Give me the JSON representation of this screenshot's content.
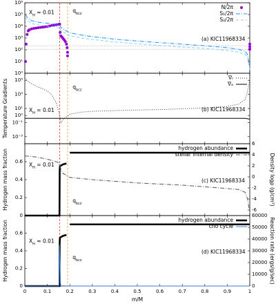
{
  "vlines": [
    {
      "x": 0.155,
      "color": "#e8382e"
    },
    {
      "x": 0.19,
      "color": "#f5a623"
    }
  ],
  "xh_label": {
    "base": "X",
    "sub": "H",
    "tail": " = 0.01"
  },
  "bcz_label": {
    "base": "q",
    "sub": "bcz"
  },
  "chart_data": [
    {
      "type": "line",
      "annotation": "(a) KIC11968334",
      "log": true,
      "legend": "upper right",
      "xlim": [
        0,
        1
      ],
      "xticks": [
        0,
        0.1,
        0.2,
        0.3,
        0.4,
        0.5,
        0.6,
        0.7,
        0.8,
        0.9,
        1
      ],
      "ylim": [
        1,
        1000000
      ],
      "yticks": [
        {
          "value": 1,
          "label": "10⁰"
        },
        {
          "value": 10,
          "label": "10¹"
        },
        {
          "value": 100,
          "label": "10²"
        },
        {
          "value": 1000,
          "label": "10³"
        },
        {
          "value": 10000,
          "label": "10⁴"
        },
        {
          "value": 100000,
          "label": "10⁵"
        },
        {
          "value": 1000000,
          "label": "10⁶"
        }
      ],
      "hlines": [
        220,
        110
      ],
      "series": [
        {
          "name": "N/2π",
          "color": "#9400d3",
          "style": "points",
          "x": [
            0.003,
            0.006,
            0.01,
            0.015,
            0.02,
            0.03,
            0.04,
            0.05,
            0.06,
            0.07,
            0.08,
            0.09,
            0.1,
            0.11,
            0.12,
            0.13,
            0.14,
            0.15,
            0.155,
            0.157,
            0.16,
            0.165,
            0.17,
            0.175,
            0.18,
            0.185,
            0.188,
            0.19,
            0.19,
            1,
            1,
            1
          ],
          "values": [
            10,
            300,
            2000,
            4000,
            5000,
            6000,
            6500,
            7000,
            7500,
            8000,
            8500,
            9000,
            9500,
            10500,
            11500,
            12500,
            13500,
            14500,
            15000,
            3000,
            1500,
            1200,
            900,
            700,
            500,
            300,
            150,
            60,
            30,
            300,
            180,
            110
          ]
        },
        {
          "name": "S₁/2π",
          "color": "#1e90ff",
          "style": "dashdot",
          "x": [
            0.002,
            0.01,
            0.03,
            0.06,
            0.1,
            0.14,
            0.155,
            0.16,
            0.17,
            0.18,
            0.19,
            0.2,
            0.25,
            0.3,
            0.4,
            0.5,
            0.6,
            0.7,
            0.8,
            0.9,
            0.95,
            0.98,
            0.99,
            1
          ],
          "values": [
            100000,
            60000,
            30000,
            22000,
            18000,
            15000,
            14000,
            8000,
            6000,
            4500,
            3500,
            2800,
            1800,
            1300,
            800,
            550,
            400,
            300,
            220,
            150,
            110,
            70,
            40,
            3
          ]
        },
        {
          "name": "S₂/2π",
          "color": "#87cefa",
          "style": "dashed",
          "x": [
            0.002,
            0.01,
            0.03,
            0.06,
            0.1,
            0.14,
            0.155,
            0.16,
            0.17,
            0.18,
            0.19,
            0.2,
            0.25,
            0.3,
            0.4,
            0.5,
            0.6,
            0.7,
            0.8,
            0.9,
            0.95,
            0.98,
            0.99,
            1
          ],
          "values": [
            58000,
            35000,
            17000,
            13000,
            10000,
            8700,
            8100,
            4600,
            3500,
            2600,
            2000,
            1600,
            1000,
            750,
            460,
            320,
            230,
            170,
            130,
            87,
            64,
            40,
            23,
            2
          ]
        }
      ]
    },
    {
      "type": "line",
      "annotation": "(b) KIC11968334",
      "log": true,
      "legend": "upper right",
      "ylabel": "Temperature Gradients",
      "xlim": [
        0,
        1
      ],
      "xticks": [
        0,
        0.1,
        0.2,
        0.3,
        0.4,
        0.5,
        0.6,
        0.7,
        0.8,
        0.9,
        1
      ],
      "ylim": [
        0.0001,
        1000000
      ],
      "yticks": [
        {
          "value": 0.001,
          "label": "10⁻³"
        },
        {
          "value": 0.1,
          "label": "10⁻¹"
        },
        {
          "value": 1,
          "label": "10⁰"
        },
        {
          "value": 10,
          "label": "10¹"
        },
        {
          "value": 1000,
          "label": "10³"
        },
        {
          "value": 100000,
          "label": "10⁵"
        }
      ],
      "series": [
        {
          "name": "∇ᵣ",
          "color": "#333333",
          "style": "dotted",
          "x": [
            0,
            0.02,
            0.05,
            0.08,
            0.1,
            0.12,
            0.14,
            0.15,
            0.155,
            0.16,
            0.165,
            0.17,
            0.18,
            0.2,
            0.25,
            0.3,
            0.4,
            0.5,
            0.6,
            0.7,
            0.8,
            0.9,
            0.95,
            0.98,
            0.99,
            1
          ],
          "values": [
            200000,
            50000,
            15000,
            6000,
            3000,
            800,
            60,
            5,
            1,
            0.08,
            0.15,
            0.25,
            0.5,
            1.5,
            3,
            4,
            5,
            6,
            7,
            9,
            12,
            20,
            40,
            200,
            3000,
            100000
          ]
        },
        {
          "name": "∇ₐ",
          "color": "#000000",
          "style": "solid",
          "x": [
            0,
            0.98,
            0.99,
            1
          ],
          "values": [
            0.4,
            0.4,
            0.35,
            0.3
          ]
        }
      ]
    },
    {
      "type": "line",
      "annotation": "(c) KIC11968334",
      "legend": "upper right",
      "ylabel": "Hydrogen mass fraction",
      "y2label": "Density logρ (g/cm³)",
      "xlim": [
        0,
        1
      ],
      "xticks": [
        0,
        0.1,
        0.2,
        0.3,
        0.4,
        0.5,
        0.6,
        0.7,
        0.8,
        0.9,
        1
      ],
      "ylim": [
        0,
        0.8
      ],
      "yticks": [
        0,
        0.2,
        0.4,
        0.6
      ],
      "y2lim": [
        -7,
        6
      ],
      "y2ticks": [
        -6,
        -4,
        -2,
        0,
        2,
        4,
        6
      ],
      "series": [
        {
          "name": "hydrogen abundance",
          "color": "#000000",
          "style": "thick",
          "x": [
            0,
            0.154,
            0.155,
            0.156,
            0.17,
            0.185,
            0.195,
            0.2,
            1
          ],
          "values": [
            0,
            0,
            0.5,
            0.55,
            0.57,
            0.58,
            null,
            0.7,
            0.7
          ]
        },
        {
          "name": "stellar internal density",
          "color": "#555555",
          "style": "dashdot",
          "axis": "y2",
          "x": [
            0,
            0.05,
            0.1,
            0.15,
            0.155,
            0.16,
            0.17,
            0.18,
            0.19,
            0.2,
            0.3,
            0.4,
            0.5,
            0.6,
            0.7,
            0.8,
            0.9,
            0.95,
            0.98,
            0.99,
            1
          ],
          "values": [
            3.8,
            3.6,
            3.2,
            2.6,
            2.2,
            1.4,
            0.6,
            0.4,
            0.1,
            -0.1,
            -0.5,
            -0.8,
            -1.1,
            -1.3,
            -1.5,
            -1.8,
            -2.1,
            -2.3,
            -2.8,
            -4,
            -6.5
          ]
        }
      ]
    },
    {
      "type": "line",
      "annotation": "(d) KIC11968334",
      "legend": "upper right",
      "ylabel": "Hydrogen mass fraction",
      "y2label": "Reaction rate (ergs/g/sec)",
      "xlabel": "m/M",
      "xlim": [
        0,
        1
      ],
      "xticks": [
        0,
        0.1,
        0.2,
        0.3,
        0.4,
        0.5,
        0.6,
        0.7,
        0.8,
        0.9,
        1
      ],
      "ylim": [
        0,
        0.8
      ],
      "yticks": [
        0,
        0.2,
        0.4,
        0.6
      ],
      "y2lim": [
        0,
        60000
      ],
      "y2ticks": [
        0,
        10000,
        20000,
        30000,
        40000,
        50000,
        60000
      ],
      "series": [
        {
          "name": "hydrogen abundance",
          "color": "#000000",
          "style": "thick",
          "x": [
            0,
            0.154,
            0.155,
            0.156,
            0.17,
            0.185,
            0.195,
            0.2,
            1
          ],
          "values": [
            0,
            0,
            0.5,
            0.55,
            0.57,
            0.58,
            null,
            0.7,
            0.7
          ]
        },
        {
          "name": "cno cycle",
          "color": "#3a7bd5",
          "style": "solid",
          "axis": "y2",
          "x": [
            0,
            0.15,
            0.152,
            0.154,
            0.156,
            0.158,
            0.16,
            0.2,
            1
          ],
          "values": [
            0,
            0,
            500,
            35000,
            20000,
            3000,
            200,
            0,
            0
          ]
        }
      ]
    }
  ]
}
